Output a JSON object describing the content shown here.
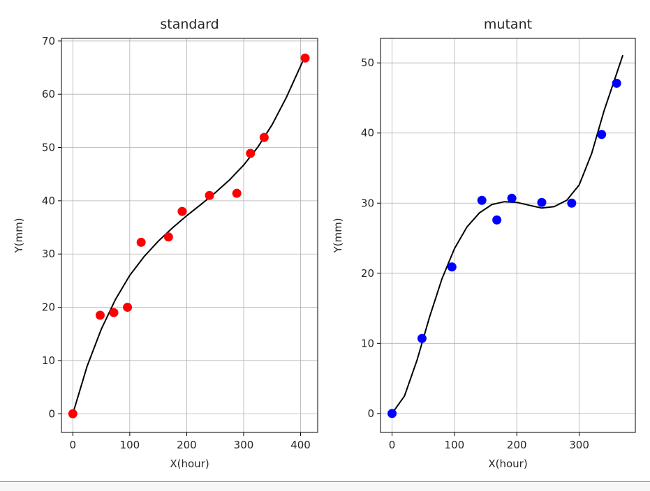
{
  "chart_data": [
    {
      "type": "scatter",
      "title": "standard",
      "xlabel": "X(hour)",
      "ylabel": "Y(mm)",
      "xlim": [
        -20,
        430
      ],
      "ylim": [
        -3.5,
        70.5
      ],
      "xticks": [
        0,
        100,
        200,
        300,
        400
      ],
      "yticks": [
        0,
        10,
        20,
        30,
        40,
        50,
        60,
        70
      ],
      "grid": true,
      "point_color": "#ff0000",
      "curve_color": "#000000",
      "points": {
        "x": [
          0,
          48,
          72,
          96,
          120,
          168,
          192,
          240,
          288,
          312,
          336,
          408
        ],
        "y": [
          0,
          18.5,
          19,
          20,
          32.2,
          33.2,
          38,
          41,
          41.4,
          48.9,
          51.9,
          66.8
        ]
      },
      "fit_curve": {
        "x": [
          0,
          25,
          50,
          75,
          100,
          125,
          150,
          175,
          200,
          225,
          250,
          275,
          300,
          325,
          350,
          375,
          408
        ],
        "y": [
          0,
          8.9,
          15.9,
          21.5,
          26,
          29.5,
          32.4,
          34.9,
          37.2,
          39.3,
          41.5,
          43.9,
          46.7,
          50.1,
          54.3,
          59.4,
          67.2
        ]
      }
    },
    {
      "type": "scatter",
      "title": "mutant",
      "xlabel": "X(hour)",
      "ylabel": "Y(mm)",
      "xlim": [
        -18.5,
        390
      ],
      "ylim": [
        -2.7,
        53.5
      ],
      "xticks": [
        0,
        100,
        200,
        300
      ],
      "yticks": [
        0,
        10,
        20,
        30,
        40,
        50
      ],
      "grid": true,
      "point_color": "#0000ff",
      "curve_color": "#000000",
      "points": {
        "x": [
          0,
          48,
          96,
          144,
          168,
          192,
          240,
          288,
          336,
          360
        ],
        "y": [
          0,
          10.7,
          20.9,
          30.4,
          27.6,
          30.7,
          30.1,
          30,
          39.8,
          47.1
        ]
      },
      "fit_curve": {
        "x": [
          0,
          20,
          40,
          60,
          80,
          100,
          120,
          140,
          160,
          180,
          200,
          220,
          240,
          260,
          280,
          300,
          320,
          340,
          370
        ],
        "y": [
          0,
          2.5,
          7.6,
          13.7,
          19.2,
          23.5,
          26.6,
          28.6,
          29.8,
          30.2,
          30.1,
          29.7,
          29.3,
          29.5,
          30.4,
          32.6,
          37.1,
          43.2,
          51.1
        ]
      }
    }
  ]
}
